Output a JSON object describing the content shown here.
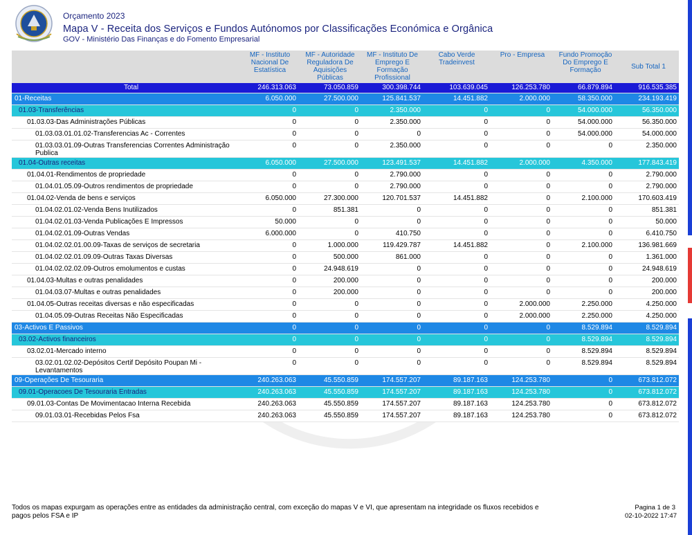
{
  "header": {
    "year": "Orçamento 2023",
    "title": "Mapa V - Receita dos Serviços e Fundos Autónomos por Classificações Económica e Orgânica",
    "subtitle": "GOV - Ministério Das Finanças e do Fomento Empresarial"
  },
  "columns": [
    "MF - Instituto Nacional De Estatística",
    "MF - Autoridade Reguladora De Aquisições Públicas",
    "MF - Instituto De Emprego E Formação Profissional",
    "Cabo Verde Tradeinvest",
    "Pro - Empresa",
    "Fundo Promoção Do Emprego E Formação",
    "Sub Total 1"
  ],
  "colors": {
    "total": "#1a1ad6",
    "level1": "#1e88e5",
    "level2": "#26c6da",
    "header_bg": "#dcdcdc"
  },
  "rows": [
    {
      "label": "Total",
      "type": "total",
      "values": [
        "246.313.063",
        "73.050.859",
        "300.398.744",
        "103.639.045",
        "126.253.780",
        "66.879.894",
        "916.535.385"
      ]
    },
    {
      "label": "01-Receitas",
      "type": "l1",
      "values": [
        "6.050.000",
        "27.500.000",
        "125.841.537",
        "14.451.882",
        "2.000.000",
        "58.350.000",
        "234.193.419"
      ]
    },
    {
      "label": "01.03-Transferências",
      "type": "l2",
      "values": [
        "0",
        "0",
        "2.350.000",
        "0",
        "0",
        "54.000.000",
        "56.350.000"
      ]
    },
    {
      "label": "01.03.03-Das Administrações Públicas",
      "type": "d1",
      "values": [
        "0",
        "0",
        "2.350.000",
        "0",
        "0",
        "54.000.000",
        "56.350.000"
      ]
    },
    {
      "label": "01.03.03.01.01.02-Transferencias Ac - Correntes",
      "type": "d2",
      "values": [
        "0",
        "0",
        "0",
        "0",
        "0",
        "54.000.000",
        "54.000.000"
      ]
    },
    {
      "label": "01.03.03.01.09-Outras Transferencias Correntes Administração Publica",
      "type": "d2t",
      "values": [
        "0",
        "0",
        "2.350.000",
        "0",
        "0",
        "0",
        "2.350.000"
      ]
    },
    {
      "label": "01.04-Outras receitas",
      "type": "l2",
      "values": [
        "6.050.000",
        "27.500.000",
        "123.491.537",
        "14.451.882",
        "2.000.000",
        "4.350.000",
        "177.843.419"
      ]
    },
    {
      "label": "01.04.01-Rendimentos de propriedade",
      "type": "d1",
      "values": [
        "0",
        "0",
        "2.790.000",
        "0",
        "0",
        "0",
        "2.790.000"
      ]
    },
    {
      "label": "01.04.01.05.09-Outros rendimentos de propriedade",
      "type": "d2",
      "values": [
        "0",
        "0",
        "2.790.000",
        "0",
        "0",
        "0",
        "2.790.000"
      ]
    },
    {
      "label": "01.04.02-Venda de bens e serviços",
      "type": "d1",
      "values": [
        "6.050.000",
        "27.300.000",
        "120.701.537",
        "14.451.882",
        "0",
        "2.100.000",
        "170.603.419"
      ]
    },
    {
      "label": "01.04.02.01.02-Venda Bens Inutilizados",
      "type": "d2",
      "values": [
        "0",
        "851.381",
        "0",
        "0",
        "0",
        "0",
        "851.381"
      ]
    },
    {
      "label": "01.04.02.01.03-Venda Publicações E Impressos",
      "type": "d2",
      "values": [
        "50.000",
        "0",
        "0",
        "0",
        "0",
        "0",
        "50.000"
      ]
    },
    {
      "label": "01.04.02.01.09-Outras Vendas",
      "type": "d2",
      "values": [
        "6.000.000",
        "0",
        "410.750",
        "0",
        "0",
        "0",
        "6.410.750"
      ]
    },
    {
      "label": "01.04.02.02.01.00.09-Taxas de serviços de secretaria",
      "type": "d2",
      "values": [
        "0",
        "1.000.000",
        "119.429.787",
        "14.451.882",
        "0",
        "2.100.000",
        "136.981.669"
      ]
    },
    {
      "label": "01.04.02.02.01.09.09-Outras Taxas Diversas",
      "type": "d2",
      "values": [
        "0",
        "500.000",
        "861.000",
        "0",
        "0",
        "0",
        "1.361.000"
      ]
    },
    {
      "label": "01.04.02.02.02.09-Outros emolumentos e custas",
      "type": "d2",
      "values": [
        "0",
        "24.948.619",
        "0",
        "0",
        "0",
        "0",
        "24.948.619"
      ]
    },
    {
      "label": "01.04.03-Multas e outras penalidades",
      "type": "d1",
      "values": [
        "0",
        "200.000",
        "0",
        "0",
        "0",
        "0",
        "200.000"
      ]
    },
    {
      "label": "01.04.03.07-Multas e outras penalidades",
      "type": "d2",
      "values": [
        "0",
        "200.000",
        "0",
        "0",
        "0",
        "0",
        "200.000"
      ]
    },
    {
      "label": "01.04.05-Outras receitas diversas e não especificadas",
      "type": "d1",
      "values": [
        "0",
        "0",
        "0",
        "0",
        "2.000.000",
        "2.250.000",
        "4.250.000"
      ]
    },
    {
      "label": "01.04.05.09-Outras Receitas  Não Especificadas",
      "type": "d2",
      "values": [
        "0",
        "0",
        "0",
        "0",
        "2.000.000",
        "2.250.000",
        "4.250.000"
      ]
    },
    {
      "label": "03-Activos E Passivos",
      "type": "l1",
      "values": [
        "0",
        "0",
        "0",
        "0",
        "0",
        "8.529.894",
        "8.529.894"
      ]
    },
    {
      "label": "03.02-Activos financeiros",
      "type": "l2",
      "values": [
        "0",
        "0",
        "0",
        "0",
        "0",
        "8.529.894",
        "8.529.894"
      ]
    },
    {
      "label": "03.02.01-Mercado interno",
      "type": "d1",
      "values": [
        "0",
        "0",
        "0",
        "0",
        "0",
        "8.529.894",
        "8.529.894"
      ]
    },
    {
      "label": "03.02.01.02.02-Depósitos Certif Depósito Poupan Mi - Levantamentos",
      "type": "d2t",
      "values": [
        "0",
        "0",
        "0",
        "0",
        "0",
        "8.529.894",
        "8.529.894"
      ]
    },
    {
      "label": "09-Operações De Tesouraria",
      "type": "l1",
      "values": [
        "240.263.063",
        "45.550.859",
        "174.557.207",
        "89.187.163",
        "124.253.780",
        "0",
        "673.812.072"
      ]
    },
    {
      "label": "09.01-Operacoes De Tesouraria Entradas",
      "type": "l2",
      "values": [
        "240.263.063",
        "45.550.859",
        "174.557.207",
        "89.187.163",
        "124.253.780",
        "0",
        "673.812.072"
      ]
    },
    {
      "label": "09.01.03-Contas De Movimentacao Interna Recebida",
      "type": "d1",
      "values": [
        "240.263.063",
        "45.550.859",
        "174.557.207",
        "89.187.163",
        "124.253.780",
        "0",
        "673.812.072"
      ]
    },
    {
      "label": "09.01.03.01-Recebidas Pelos Fsa",
      "type": "d2",
      "values": [
        "240.263.063",
        "45.550.859",
        "174.557.207",
        "89.187.163",
        "124.253.780",
        "0",
        "673.812.072"
      ]
    }
  ],
  "footer": {
    "note": "Todos os mapas expurgam as operações entre as entidades da administração central, com exceção do mapas V e VI, que apresentam na integridade os fluxos recebidos e pagos pelos FSA e IP",
    "page": "Pagina 1 de 3",
    "date": "02-10-2022  17:47"
  }
}
